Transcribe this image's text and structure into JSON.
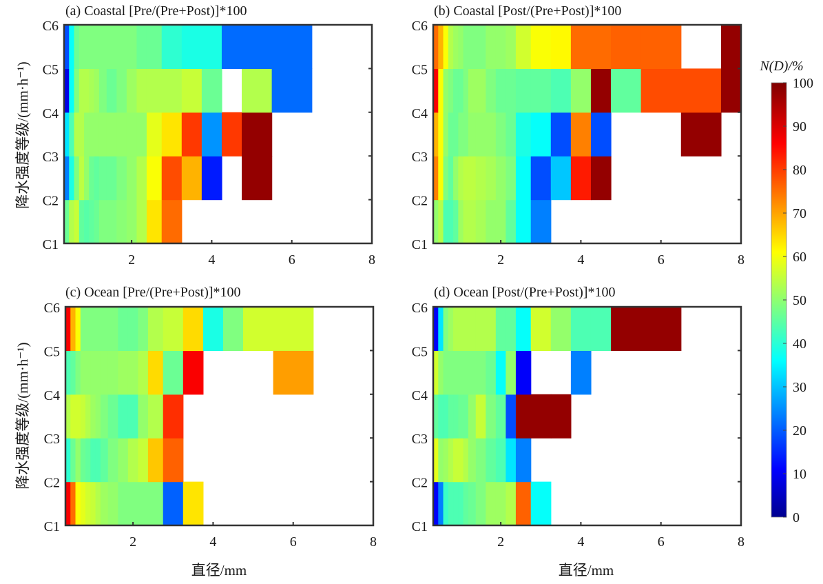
{
  "chart_data": {
    "type": "heatmap",
    "figure_layout": "2x2 panels with shared colorbar",
    "x_bin_edges_mm": [
      0.3125,
      0.4375,
      0.5625,
      0.6875,
      0.8125,
      0.9375,
      1.0625,
      1.1875,
      1.375,
      1.625,
      1.875,
      2.125,
      2.375,
      2.75,
      3.25,
      3.75,
      4.25,
      4.75,
      5.5,
      6.5,
      7.5,
      8.0
    ],
    "x_range": [
      0.3125,
      8
    ],
    "x_ticks": [
      2,
      4,
      6,
      8
    ],
    "x_tick_labels": [
      "2",
      "4",
      "6",
      "8"
    ],
    "y_tick_labels": [
      "C1",
      "C2",
      "C3",
      "C4",
      "C5",
      "C6"
    ],
    "y_rows": [
      "C1-C2",
      "C2-C3",
      "C3-C4",
      "C4-C5",
      "C5-C6"
    ],
    "xlabel": "直径/mm",
    "ylabel": "降水强度等级/(mm·h⁻¹)",
    "colorbar": {
      "title": "N(D)/%",
      "range": [
        0,
        100
      ],
      "ticks": [
        0,
        10,
        20,
        30,
        40,
        50,
        60,
        70,
        80,
        90,
        100
      ],
      "colormap": "jet",
      "placement": "right"
    },
    "panels": [
      {
        "id": "a",
        "title": "(a) Coastal [Pre/(Pre+Post)]*100",
        "values": [
          [
            48,
            55,
            57,
            47,
            46,
            47,
            48,
            50,
            50,
            51,
            52,
            55,
            65,
            77,
            null,
            null,
            null,
            null,
            null,
            null,
            null
          ],
          [
            25,
            40,
            50,
            56,
            52,
            48,
            47,
            48,
            48,
            50,
            52,
            55,
            62,
            80,
            70,
            15,
            null,
            98,
            null,
            null,
            null
          ],
          [
            35,
            45,
            55,
            55,
            52,
            52,
            52,
            52,
            52,
            52,
            52,
            52,
            60,
            65,
            82,
            27,
            82,
            98,
            null,
            null,
            null
          ],
          [
            10,
            38,
            50,
            55,
            55,
            54,
            53,
            50,
            48,
            50,
            53,
            55,
            55,
            55,
            57,
            48,
            null,
            55,
            23,
            null,
            null
          ],
          [
            20,
            38,
            48,
            50,
            50,
            50,
            50,
            50,
            50,
            50,
            50,
            48,
            48,
            42,
            40,
            40,
            23,
            23,
            23,
            null,
            null
          ]
        ]
      },
      {
        "id": "b",
        "title": "(b) Coastal [Post/(Pre+Post)]*100",
        "values": [
          [
            52,
            55,
            45,
            45,
            47,
            53,
            55,
            55,
            54,
            52,
            52,
            47,
            38,
            25,
            null,
            null,
            null,
            null,
            null,
            null,
            null
          ],
          [
            75,
            62,
            50,
            47,
            52,
            55,
            56,
            56,
            55,
            54,
            52,
            50,
            38,
            20,
            32,
            85,
            98,
            null,
            null,
            null,
            null
          ],
          [
            70,
            62,
            52,
            48,
            48,
            50,
            50,
            52,
            52,
            52,
            50,
            48,
            40,
            38,
            20,
            75,
            20,
            null,
            null,
            98,
            null
          ],
          [
            88,
            62,
            52,
            50,
            48,
            48,
            50,
            53,
            53,
            50,
            48,
            48,
            47,
            47,
            45,
            52,
            98,
            47,
            80,
            80,
            98
          ],
          [
            77,
            70,
            62,
            55,
            53,
            52,
            50,
            50,
            50,
            52,
            52,
            53,
            58,
            62,
            63,
            77,
            77,
            78,
            78,
            null,
            98
          ]
        ]
      },
      {
        "id": "c",
        "title": "(c) Ocean [Pre/(Pre+Post)]*100",
        "values": [
          [
            88,
            77,
            62,
            60,
            58,
            57,
            55,
            53,
            52,
            50,
            50,
            50,
            50,
            22,
            65,
            null,
            null,
            null,
            null,
            null,
            null
          ],
          [
            42,
            48,
            52,
            48,
            47,
            45,
            45,
            47,
            50,
            52,
            55,
            57,
            68,
            78,
            null,
            null,
            null,
            null,
            null,
            null,
            null
          ],
          [
            55,
            58,
            58,
            57,
            55,
            53,
            52,
            50,
            48,
            45,
            45,
            52,
            55,
            83,
            null,
            null,
            null,
            null,
            null,
            null,
            null
          ],
          [
            45,
            47,
            50,
            52,
            52,
            52,
            52,
            52,
            52,
            53,
            53,
            55,
            66,
            48,
            88,
            null,
            null,
            null,
            72,
            null,
            null
          ],
          [
            88,
            70,
            62,
            50,
            50,
            50,
            50,
            50,
            50,
            48,
            48,
            50,
            55,
            57,
            66,
            40,
            50,
            58,
            58,
            null,
            null
          ]
        ]
      },
      {
        "id": "d",
        "title": "(d) Ocean [Post/(Pre+Post)]*100",
        "values": [
          [
            12,
            25,
            43,
            45,
            45,
            45,
            47,
            48,
            50,
            53,
            53,
            55,
            78,
            38,
            null,
            null,
            null,
            null,
            null,
            null,
            null
          ],
          [
            60,
            52,
            53,
            55,
            57,
            57,
            55,
            52,
            50,
            47,
            45,
            35,
            25,
            null,
            null,
            null,
            null,
            null,
            null,
            null,
            null
          ],
          [
            47,
            45,
            45,
            47,
            47,
            48,
            48,
            52,
            57,
            50,
            47,
            20,
            98,
            98,
            98,
            null,
            null,
            null,
            null,
            null,
            null
          ],
          [
            58,
            52,
            50,
            50,
            50,
            50,
            50,
            50,
            50,
            48,
            38,
            52,
            12,
            null,
            null,
            25,
            null,
            null,
            null,
            null,
            null
          ],
          [
            12,
            35,
            50,
            53,
            55,
            55,
            55,
            55,
            55,
            55,
            47,
            47,
            38,
            58,
            52,
            45,
            45,
            98,
            98,
            null,
            null
          ]
        ]
      }
    ]
  }
}
